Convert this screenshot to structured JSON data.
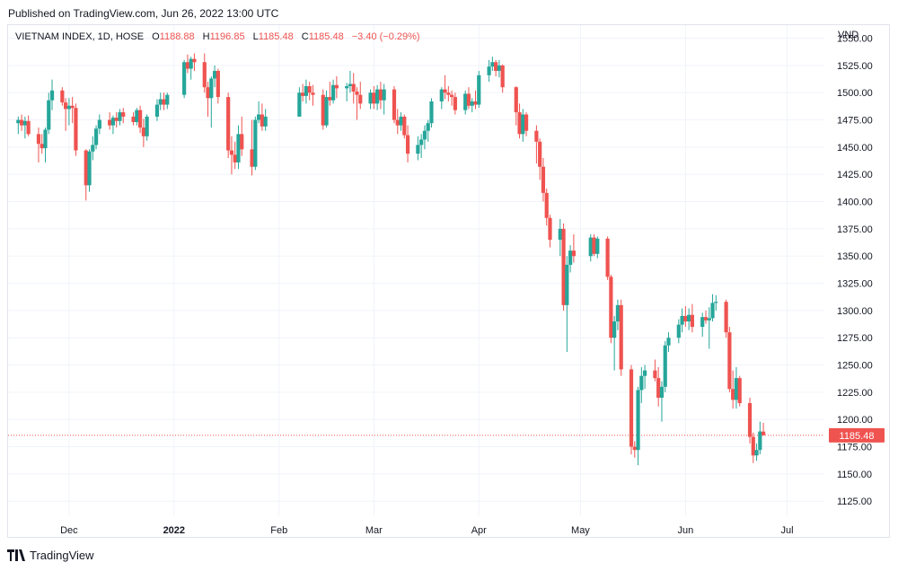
{
  "header": {
    "published": "Published on TradingView.com, Jun 26, 2022 13:00 UTC"
  },
  "legend": {
    "symbol": "VIETNAM INDEX, 1D, HOSE",
    "open_label": "O",
    "open": "1188.88",
    "high_label": "H",
    "high": "1196.85",
    "low_label": "L",
    "low": "1185.48",
    "close_label": "C",
    "close": "1185.48",
    "change": "−3.40 (−0.29%)"
  },
  "footer": {
    "brand": "TradingView"
  },
  "colors": {
    "up": "#26a69a",
    "down": "#ef5350",
    "grid": "#f0f3fa",
    "axis_text": "#131722"
  },
  "chart_data": {
    "type": "candlestick",
    "currency": "VND",
    "ylim": [
      1112,
      1562
    ],
    "y_ticks": [
      1125,
      1150,
      1175,
      1200,
      1225,
      1250,
      1275,
      1300,
      1325,
      1350,
      1375,
      1400,
      1425,
      1450,
      1475,
      1500,
      1525,
      1550
    ],
    "y_tick_labels": [
      "1125.00",
      "1150.00",
      "1175.00",
      "1200.00",
      "1225.00",
      "1250.00",
      "1275.00",
      "1300.00",
      "1325.00",
      "1350.00",
      "1375.00",
      "1400.00",
      "1425.00",
      "1450.00",
      "1475.00",
      "1500.00",
      "1525.00",
      "1550.00"
    ],
    "x_labels": [
      {
        "label": "Dec",
        "date": "2021-12-01"
      },
      {
        "label": "2022",
        "date": "2022-01-01",
        "bold": true
      },
      {
        "label": "Feb",
        "date": "2022-02-01"
      },
      {
        "label": "Mar",
        "date": "2022-03-01"
      },
      {
        "label": "Apr",
        "date": "2022-04-01"
      },
      {
        "label": "May",
        "date": "2022-05-01"
      },
      {
        "label": "Jun",
        "date": "2022-06-01"
      },
      {
        "label": "Jul",
        "date": "2022-07-01"
      }
    ],
    "last_price_label": "1185.48",
    "candles": [
      {
        "d": "2021-11-16",
        "o": 1472,
        "h": 1478,
        "l": 1462,
        "c": 1475
      },
      {
        "d": "2021-11-17",
        "o": 1475,
        "h": 1480,
        "l": 1465,
        "c": 1470
      },
      {
        "d": "2021-11-18",
        "o": 1470,
        "h": 1478,
        "l": 1458,
        "c": 1474
      },
      {
        "d": "2021-11-19",
        "o": 1474,
        "h": 1479,
        "l": 1460,
        "c": 1462
      },
      {
        "d": "2021-11-22",
        "o": 1462,
        "h": 1468,
        "l": 1436,
        "c": 1453
      },
      {
        "d": "2021-11-23",
        "o": 1453,
        "h": 1462,
        "l": 1444,
        "c": 1449
      },
      {
        "d": "2021-11-24",
        "o": 1449,
        "h": 1468,
        "l": 1436,
        "c": 1466
      },
      {
        "d": "2021-11-25",
        "o": 1466,
        "h": 1500,
        "l": 1462,
        "c": 1493
      },
      {
        "d": "2021-11-26",
        "o": 1493,
        "h": 1512,
        "l": 1484,
        "c": 1502
      },
      {
        "d": "2021-11-29",
        "o": 1502,
        "h": 1505,
        "l": 1488,
        "c": 1491
      },
      {
        "d": "2021-11-30",
        "o": 1491,
        "h": 1495,
        "l": 1465,
        "c": 1485
      },
      {
        "d": "2021-12-01",
        "o": 1485,
        "h": 1495,
        "l": 1470,
        "c": 1488
      },
      {
        "d": "2021-12-02",
        "o": 1488,
        "h": 1496,
        "l": 1472,
        "c": 1486
      },
      {
        "d": "2021-12-03",
        "o": 1486,
        "h": 1490,
        "l": 1442,
        "c": 1447
      },
      {
        "d": "2021-12-06",
        "o": 1447,
        "h": 1448,
        "l": 1401,
        "c": 1415
      },
      {
        "d": "2021-12-07",
        "o": 1415,
        "h": 1448,
        "l": 1409,
        "c": 1446
      },
      {
        "d": "2021-12-08",
        "o": 1446,
        "h": 1460,
        "l": 1438,
        "c": 1452
      },
      {
        "d": "2021-12-09",
        "o": 1452,
        "h": 1470,
        "l": 1448,
        "c": 1467
      },
      {
        "d": "2021-12-10",
        "o": 1467,
        "h": 1480,
        "l": 1462,
        "c": 1475
      },
      {
        "d": "2021-12-13",
        "o": 1475,
        "h": 1482,
        "l": 1466,
        "c": 1470
      },
      {
        "d": "2021-12-14",
        "o": 1470,
        "h": 1479,
        "l": 1462,
        "c": 1477
      },
      {
        "d": "2021-12-15",
        "o": 1477,
        "h": 1482,
        "l": 1468,
        "c": 1474
      },
      {
        "d": "2021-12-16",
        "o": 1474,
        "h": 1485,
        "l": 1470,
        "c": 1482
      },
      {
        "d": "2021-12-17",
        "o": 1482,
        "h": 1486,
        "l": 1472,
        "c": 1478
      },
      {
        "d": "2021-12-20",
        "o": 1478,
        "h": 1482,
        "l": 1470,
        "c": 1473
      },
      {
        "d": "2021-12-21",
        "o": 1473,
        "h": 1486,
        "l": 1470,
        "c": 1484
      },
      {
        "d": "2021-12-22",
        "o": 1484,
        "h": 1488,
        "l": 1463,
        "c": 1468
      },
      {
        "d": "2021-12-23",
        "o": 1468,
        "h": 1476,
        "l": 1450,
        "c": 1460
      },
      {
        "d": "2021-12-24",
        "o": 1460,
        "h": 1480,
        "l": 1456,
        "c": 1478
      },
      {
        "d": "2021-12-27",
        "o": 1478,
        "h": 1494,
        "l": 1474,
        "c": 1489
      },
      {
        "d": "2021-12-28",
        "o": 1489,
        "h": 1500,
        "l": 1484,
        "c": 1494
      },
      {
        "d": "2021-12-29",
        "o": 1494,
        "h": 1500,
        "l": 1484,
        "c": 1489
      },
      {
        "d": "2021-12-30",
        "o": 1489,
        "h": 1500,
        "l": 1485,
        "c": 1498
      },
      {
        "d": "2022-01-04",
        "o": 1498,
        "h": 1530,
        "l": 1495,
        "c": 1528
      },
      {
        "d": "2022-01-05",
        "o": 1528,
        "h": 1535,
        "l": 1518,
        "c": 1522
      },
      {
        "d": "2022-01-06",
        "o": 1522,
        "h": 1533,
        "l": 1512,
        "c": 1531
      },
      {
        "d": "2022-01-07",
        "o": 1531,
        "h": 1536,
        "l": 1520,
        "c": 1528
      },
      {
        "d": "2022-01-10",
        "o": 1528,
        "h": 1536,
        "l": 1500,
        "c": 1505
      },
      {
        "d": "2022-01-11",
        "o": 1505,
        "h": 1510,
        "l": 1478,
        "c": 1495
      },
      {
        "d": "2022-01-12",
        "o": 1495,
        "h": 1515,
        "l": 1468,
        "c": 1513
      },
      {
        "d": "2022-01-13",
        "o": 1513,
        "h": 1525,
        "l": 1505,
        "c": 1520
      },
      {
        "d": "2022-01-14",
        "o": 1520,
        "h": 1522,
        "l": 1490,
        "c": 1496
      },
      {
        "d": "2022-01-17",
        "o": 1496,
        "h": 1500,
        "l": 1440,
        "c": 1447
      },
      {
        "d": "2022-01-18",
        "o": 1447,
        "h": 1460,
        "l": 1425,
        "c": 1443
      },
      {
        "d": "2022-01-19",
        "o": 1443,
        "h": 1455,
        "l": 1430,
        "c": 1436
      },
      {
        "d": "2022-01-20",
        "o": 1436,
        "h": 1470,
        "l": 1430,
        "c": 1462
      },
      {
        "d": "2022-01-21",
        "o": 1462,
        "h": 1478,
        "l": 1442,
        "c": 1448
      },
      {
        "d": "2022-01-24",
        "o": 1448,
        "h": 1475,
        "l": 1424,
        "c": 1432
      },
      {
        "d": "2022-01-25",
        "o": 1432,
        "h": 1478,
        "l": 1429,
        "c": 1475
      },
      {
        "d": "2022-01-26",
        "o": 1475,
        "h": 1492,
        "l": 1472,
        "c": 1480
      },
      {
        "d": "2022-01-27",
        "o": 1480,
        "h": 1490,
        "l": 1465,
        "c": 1469
      },
      {
        "d": "2022-01-28",
        "o": 1469,
        "h": 1485,
        "l": 1465,
        "c": 1478
      },
      {
        "d": "2022-02-07",
        "o": 1478,
        "h": 1505,
        "l": 1478,
        "c": 1500
      },
      {
        "d": "2022-02-08",
        "o": 1500,
        "h": 1508,
        "l": 1492,
        "c": 1497
      },
      {
        "d": "2022-02-09",
        "o": 1497,
        "h": 1512,
        "l": 1490,
        "c": 1506
      },
      {
        "d": "2022-02-10",
        "o": 1506,
        "h": 1510,
        "l": 1493,
        "c": 1500
      },
      {
        "d": "2022-02-11",
        "o": 1500,
        "h": 1507,
        "l": 1488,
        "c": 1498
      },
      {
        "d": "2022-02-14",
        "o": 1498,
        "h": 1503,
        "l": 1466,
        "c": 1470
      },
      {
        "d": "2022-02-15",
        "o": 1470,
        "h": 1502,
        "l": 1468,
        "c": 1496
      },
      {
        "d": "2022-02-16",
        "o": 1496,
        "h": 1510,
        "l": 1488,
        "c": 1493
      },
      {
        "d": "2022-02-17",
        "o": 1493,
        "h": 1512,
        "l": 1490,
        "c": 1507
      },
      {
        "d": "2022-02-18",
        "o": 1507,
        "h": 1515,
        "l": 1495,
        "c": 1504
      },
      {
        "d": "2022-02-21",
        "o": 1504,
        "h": 1509,
        "l": 1492,
        "c": 1506
      },
      {
        "d": "2022-02-22",
        "o": 1506,
        "h": 1520,
        "l": 1500,
        "c": 1508
      },
      {
        "d": "2022-02-23",
        "o": 1508,
        "h": 1518,
        "l": 1490,
        "c": 1501
      },
      {
        "d": "2022-02-24",
        "o": 1501,
        "h": 1505,
        "l": 1475,
        "c": 1498
      },
      {
        "d": "2022-02-25",
        "o": 1498,
        "h": 1510,
        "l": 1485,
        "c": 1490
      },
      {
        "d": "2022-02-28",
        "o": 1490,
        "h": 1503,
        "l": 1485,
        "c": 1500
      },
      {
        "d": "2022-03-01",
        "o": 1500,
        "h": 1506,
        "l": 1485,
        "c": 1490
      },
      {
        "d": "2022-03-02",
        "o": 1490,
        "h": 1507,
        "l": 1484,
        "c": 1503
      },
      {
        "d": "2022-03-03",
        "o": 1503,
        "h": 1510,
        "l": 1485,
        "c": 1493
      },
      {
        "d": "2022-03-04",
        "o": 1493,
        "h": 1508,
        "l": 1480,
        "c": 1503
      },
      {
        "d": "2022-03-07",
        "o": 1503,
        "h": 1506,
        "l": 1472,
        "c": 1475
      },
      {
        "d": "2022-03-08",
        "o": 1475,
        "h": 1485,
        "l": 1462,
        "c": 1470
      },
      {
        "d": "2022-03-09",
        "o": 1470,
        "h": 1482,
        "l": 1465,
        "c": 1478
      },
      {
        "d": "2022-03-10",
        "o": 1478,
        "h": 1480,
        "l": 1458,
        "c": 1461
      },
      {
        "d": "2022-03-11",
        "o": 1461,
        "h": 1470,
        "l": 1436,
        "c": 1444
      },
      {
        "d": "2022-03-14",
        "o": 1444,
        "h": 1460,
        "l": 1438,
        "c": 1452
      },
      {
        "d": "2022-03-15",
        "o": 1452,
        "h": 1462,
        "l": 1440,
        "c": 1457
      },
      {
        "d": "2022-03-16",
        "o": 1457,
        "h": 1470,
        "l": 1448,
        "c": 1465
      },
      {
        "d": "2022-03-17",
        "o": 1465,
        "h": 1475,
        "l": 1455,
        "c": 1472
      },
      {
        "d": "2022-03-18",
        "o": 1472,
        "h": 1495,
        "l": 1468,
        "c": 1492
      },
      {
        "d": "2022-03-21",
        "o": 1492,
        "h": 1505,
        "l": 1485,
        "c": 1503
      },
      {
        "d": "2022-03-22",
        "o": 1503,
        "h": 1516,
        "l": 1494,
        "c": 1500
      },
      {
        "d": "2022-03-23",
        "o": 1500,
        "h": 1506,
        "l": 1492,
        "c": 1498
      },
      {
        "d": "2022-03-24",
        "o": 1498,
        "h": 1502,
        "l": 1488,
        "c": 1496
      },
      {
        "d": "2022-03-25",
        "o": 1496,
        "h": 1500,
        "l": 1480,
        "c": 1484
      },
      {
        "d": "2022-03-28",
        "o": 1484,
        "h": 1502,
        "l": 1480,
        "c": 1499
      },
      {
        "d": "2022-03-29",
        "o": 1499,
        "h": 1505,
        "l": 1485,
        "c": 1488
      },
      {
        "d": "2022-03-30",
        "o": 1488,
        "h": 1495,
        "l": 1482,
        "c": 1492
      },
      {
        "d": "2022-03-31",
        "o": 1492,
        "h": 1502,
        "l": 1485,
        "c": 1489
      },
      {
        "d": "2022-04-01",
        "o": 1489,
        "h": 1520,
        "l": 1486,
        "c": 1516
      },
      {
        "d": "2022-04-04",
        "o": 1516,
        "h": 1530,
        "l": 1510,
        "c": 1524
      },
      {
        "d": "2022-04-05",
        "o": 1524,
        "h": 1533,
        "l": 1520,
        "c": 1528
      },
      {
        "d": "2022-04-06",
        "o": 1528,
        "h": 1530,
        "l": 1515,
        "c": 1520
      },
      {
        "d": "2022-04-07",
        "o": 1520,
        "h": 1530,
        "l": 1514,
        "c": 1525
      },
      {
        "d": "2022-04-08",
        "o": 1525,
        "h": 1526,
        "l": 1500,
        "c": 1505
      },
      {
        "d": "2022-04-12",
        "o": 1505,
        "h": 1506,
        "l": 1470,
        "c": 1482
      },
      {
        "d": "2022-04-13",
        "o": 1482,
        "h": 1490,
        "l": 1458,
        "c": 1462
      },
      {
        "d": "2022-04-14",
        "o": 1462,
        "h": 1485,
        "l": 1455,
        "c": 1480
      },
      {
        "d": "2022-04-15",
        "o": 1480,
        "h": 1482,
        "l": 1460,
        "c": 1465
      },
      {
        "d": "2022-04-18",
        "o": 1465,
        "h": 1470,
        "l": 1435,
        "c": 1455
      },
      {
        "d": "2022-04-19",
        "o": 1455,
        "h": 1458,
        "l": 1420,
        "c": 1432
      },
      {
        "d": "2022-04-20",
        "o": 1432,
        "h": 1440,
        "l": 1400,
        "c": 1408
      },
      {
        "d": "2022-04-21",
        "o": 1408,
        "h": 1412,
        "l": 1378,
        "c": 1385
      },
      {
        "d": "2022-04-22",
        "o": 1385,
        "h": 1388,
        "l": 1358,
        "c": 1365
      },
      {
        "d": "2022-04-25",
        "o": 1365,
        "h": 1384,
        "l": 1350,
        "c": 1375
      },
      {
        "d": "2022-04-26",
        "o": 1375,
        "h": 1380,
        "l": 1300,
        "c": 1305
      },
      {
        "d": "2022-04-27",
        "o": 1305,
        "h": 1350,
        "l": 1262,
        "c": 1342
      },
      {
        "d": "2022-04-28",
        "o": 1342,
        "h": 1360,
        "l": 1335,
        "c": 1355
      },
      {
        "d": "2022-04-29",
        "o": 1355,
        "h": 1370,
        "l": 1344,
        "c": 1350
      },
      {
        "d": "2022-05-04",
        "o": 1350,
        "h": 1370,
        "l": 1345,
        "c": 1367
      },
      {
        "d": "2022-05-05",
        "o": 1367,
        "h": 1370,
        "l": 1350,
        "c": 1352
      },
      {
        "d": "2022-05-06",
        "o": 1352,
        "h": 1368,
        "l": 1348,
        "c": 1366
      },
      {
        "d": "2022-05-09",
        "o": 1366,
        "h": 1368,
        "l": 1328,
        "c": 1331
      },
      {
        "d": "2022-05-10",
        "o": 1331,
        "h": 1333,
        "l": 1270,
        "c": 1275
      },
      {
        "d": "2022-05-11",
        "o": 1275,
        "h": 1295,
        "l": 1245,
        "c": 1290
      },
      {
        "d": "2022-05-12",
        "o": 1290,
        "h": 1310,
        "l": 1282,
        "c": 1305
      },
      {
        "d": "2022-05-13",
        "o": 1305,
        "h": 1310,
        "l": 1240,
        "c": 1246
      },
      {
        "d": "2022-05-16",
        "o": 1246,
        "h": 1250,
        "l": 1168,
        "c": 1175
      },
      {
        "d": "2022-05-17",
        "o": 1175,
        "h": 1180,
        "l": 1165,
        "c": 1172
      },
      {
        "d": "2022-05-18",
        "o": 1172,
        "h": 1230,
        "l": 1158,
        "c": 1227
      },
      {
        "d": "2022-05-19",
        "o": 1227,
        "h": 1248,
        "l": 1215,
        "c": 1240
      },
      {
        "d": "2022-05-20",
        "o": 1240,
        "h": 1250,
        "l": 1228,
        "c": 1245
      },
      {
        "d": "2022-05-23",
        "o": 1245,
        "h": 1255,
        "l": 1235,
        "c": 1238
      },
      {
        "d": "2022-05-24",
        "o": 1238,
        "h": 1248,
        "l": 1212,
        "c": 1220
      },
      {
        "d": "2022-05-25",
        "o": 1220,
        "h": 1235,
        "l": 1198,
        "c": 1230
      },
      {
        "d": "2022-05-26",
        "o": 1230,
        "h": 1272,
        "l": 1225,
        "c": 1268
      },
      {
        "d": "2022-05-27",
        "o": 1268,
        "h": 1280,
        "l": 1262,
        "c": 1275
      },
      {
        "d": "2022-05-30",
        "o": 1275,
        "h": 1292,
        "l": 1270,
        "c": 1287
      },
      {
        "d": "2022-05-31",
        "o": 1287,
        "h": 1302,
        "l": 1280,
        "c": 1295
      },
      {
        "d": "2022-06-01",
        "o": 1295,
        "h": 1304,
        "l": 1285,
        "c": 1290
      },
      {
        "d": "2022-06-02",
        "o": 1290,
        "h": 1302,
        "l": 1282,
        "c": 1296
      },
      {
        "d": "2022-06-03",
        "o": 1296,
        "h": 1306,
        "l": 1280,
        "c": 1285
      },
      {
        "d": "2022-06-06",
        "o": 1285,
        "h": 1298,
        "l": 1276,
        "c": 1294
      },
      {
        "d": "2022-06-07",
        "o": 1294,
        "h": 1300,
        "l": 1288,
        "c": 1291
      },
      {
        "d": "2022-06-08",
        "o": 1291,
        "h": 1303,
        "l": 1265,
        "c": 1293
      },
      {
        "d": "2022-06-09",
        "o": 1293,
        "h": 1315,
        "l": 1290,
        "c": 1307
      },
      {
        "d": "2022-06-10",
        "o": 1307,
        "h": 1314,
        "l": 1300,
        "c": 1308
      },
      {
        "d": "2022-06-13",
        "o": 1308,
        "h": 1310,
        "l": 1275,
        "c": 1280
      },
      {
        "d": "2022-06-14",
        "o": 1280,
        "h": 1285,
        "l": 1225,
        "c": 1228
      },
      {
        "d": "2022-06-15",
        "o": 1228,
        "h": 1245,
        "l": 1210,
        "c": 1218
      },
      {
        "d": "2022-06-16",
        "o": 1218,
        "h": 1248,
        "l": 1210,
        "c": 1238
      },
      {
        "d": "2022-06-17",
        "o": 1238,
        "h": 1240,
        "l": 1212,
        "c": 1215
      },
      {
        "d": "2022-06-20",
        "o": 1215,
        "h": 1220,
        "l": 1178,
        "c": 1184
      },
      {
        "d": "2022-06-21",
        "o": 1184,
        "h": 1188,
        "l": 1160,
        "c": 1167
      },
      {
        "d": "2022-06-22",
        "o": 1167,
        "h": 1178,
        "l": 1162,
        "c": 1172
      },
      {
        "d": "2022-06-23",
        "o": 1172,
        "h": 1198,
        "l": 1168,
        "c": 1189
      },
      {
        "d": "2022-06-24",
        "o": 1188.88,
        "h": 1196.85,
        "l": 1185.48,
        "c": 1185.48
      }
    ]
  }
}
